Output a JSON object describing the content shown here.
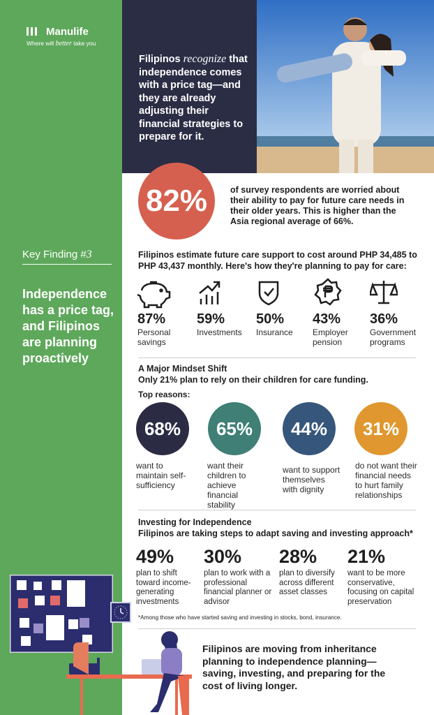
{
  "header": {
    "brand": "Manulife",
    "tagline_pre": "Where will ",
    "tagline_em": "better",
    "tagline_post": " take you"
  },
  "intro": {
    "lead": "Filipinos",
    "em": "recognize",
    "rest": "that independence comes with a price tag—and they are already adjusting their financial strategies to prepare for it."
  },
  "sidebar": {
    "finding_label": "Key Finding #",
    "finding_number": "3",
    "headline": "Independence has a price tag, and Filipinos are planning proactively"
  },
  "stat": {
    "value": "82%",
    "text": "of survey respondents are worried about their ability to pay for future care needs in their older years. This is higher than the Asia regional average of 66%."
  },
  "care": {
    "intro": "Filipinos estimate future care support to cost around PHP 34,485 to PHP 43,437 monthly. Here's how they're planning to pay for care:",
    "items": [
      {
        "value": "87%",
        "label": "Personal savings"
      },
      {
        "value": "59%",
        "label": "Investments"
      },
      {
        "value": "50%",
        "label": "Insurance"
      },
      {
        "value": "43%",
        "label": "Employer pension"
      },
      {
        "value": "36%",
        "label": "Government programs"
      }
    ]
  },
  "mindset": {
    "title": "A Major Mindset Shift",
    "subtitle": "Only 21% plan to rely on their children for care funding.",
    "reasons_title": "Top reasons:",
    "reasons": [
      {
        "value": "68%",
        "label": "want to maintain self-sufficiency"
      },
      {
        "value": "65%",
        "label": "want their children to achieve financial stability"
      },
      {
        "value": "44%",
        "label": "want to support themselves with dignity"
      },
      {
        "value": "31%",
        "label": "do not want their financial needs to hurt family relationships"
      }
    ]
  },
  "investing": {
    "title": "Investing for Independence",
    "subtitle": "Filipinos are taking steps to adapt saving and investing approach*",
    "items": [
      {
        "value": "49%",
        "label": "plan to shift toward income-generating investments"
      },
      {
        "value": "30%",
        "label": "plan to work with a professional financial planner or advisor"
      },
      {
        "value": "28%",
        "label": "plan to diversify across different asset classes"
      },
      {
        "value": "21%",
        "label": "want to be more conservative, focusing on capital preservation"
      }
    ],
    "footnote": "*Among those who have started saving and investing in stocks, bond, insurance."
  },
  "closing": "Filipinos are moving from inheritance planning to independence planning—saving, investing, and preparing for the cost of living longer."
}
